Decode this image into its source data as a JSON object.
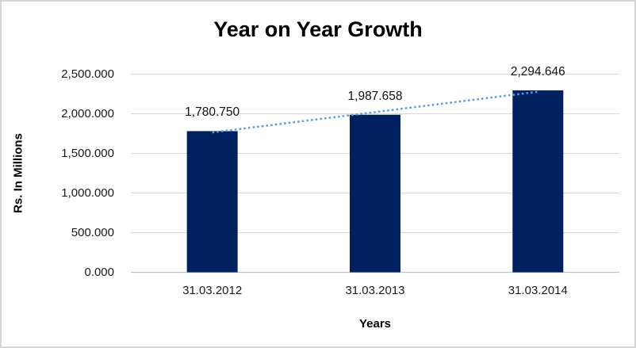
{
  "window": {
    "background": "#ffffff",
    "border_color": "#d6d6d6"
  },
  "chart_data": {
    "type": "bar",
    "title": "Year on Year Growth",
    "xlabel": "Years",
    "ylabel": "Rs. In Millions",
    "categories": [
      "31.03.2012",
      "31.03.2013",
      "31.03.2014"
    ],
    "values": [
      1780.75,
      1987.658,
      2294.646
    ],
    "data_labels": [
      "1,780.750",
      "1,987.658",
      "2,294.646"
    ],
    "ylim": [
      0,
      2500
    ],
    "ytick_step": 500,
    "ytick_labels": [
      "0.000",
      "500.000",
      "1,000.000",
      "1,500.000",
      "2,000.000",
      "2,500.000"
    ],
    "grid": true,
    "legend": "none",
    "bar_color": "#002060",
    "gridline_color": "#d9d9d9",
    "axis_line_color": "#bfbfbf",
    "trendline": {
      "type": "linear",
      "style": "dotted",
      "color": "#5b9bd5"
    }
  }
}
